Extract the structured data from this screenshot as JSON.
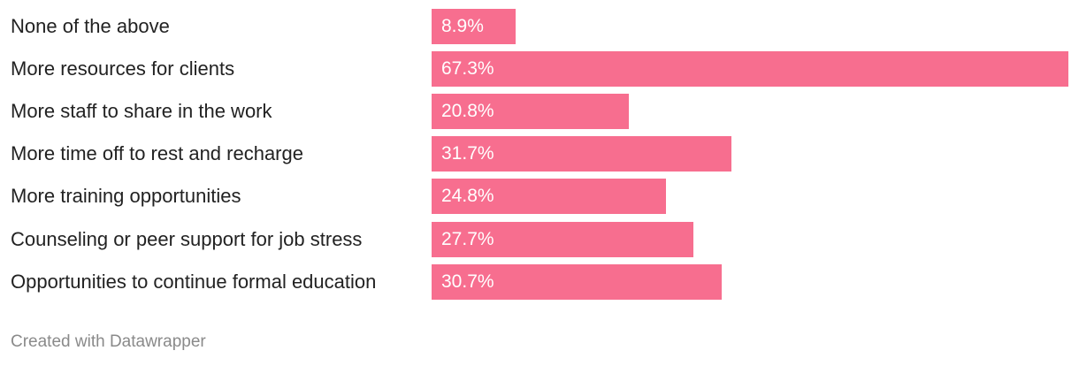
{
  "chart_data": {
    "type": "bar",
    "orientation": "horizontal",
    "categories": [
      "None of the above",
      "More resources for clients",
      "More staff to share in the work",
      "More time off to rest and recharge",
      "More training opportunities",
      "Counseling or peer support for job stress",
      "Opportunities to continue formal education"
    ],
    "values": [
      8.9,
      67.3,
      20.8,
      31.7,
      24.8,
      27.7,
      30.7
    ],
    "value_labels": [
      "8.9%",
      "67.3%",
      "20.8%",
      "31.7%",
      "24.8%",
      "27.7%",
      "30.7%"
    ],
    "bar_color": "#f76e8f",
    "title": "",
    "xlabel": "",
    "ylabel": "",
    "grid": false
  },
  "footer": {
    "credit": "Created with Datawrapper"
  }
}
